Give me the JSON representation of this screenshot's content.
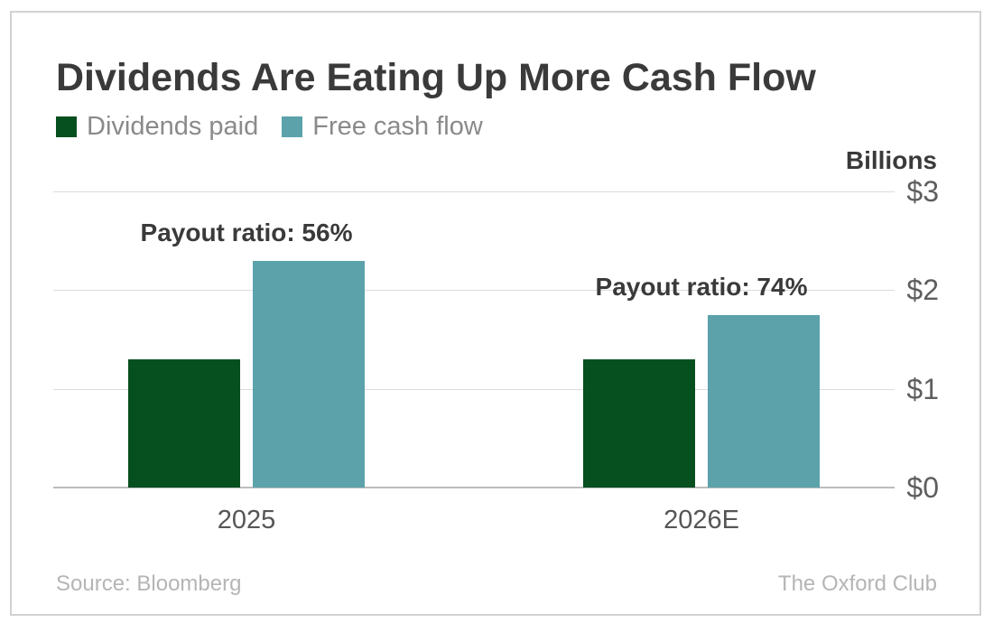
{
  "header": {
    "title": "Dividends Are Eating Up More Cash Flow",
    "legend": [
      {
        "label": "Dividends paid",
        "color": "#064f1f"
      },
      {
        "label": "Free cash flow",
        "color": "#5ba2ab"
      }
    ]
  },
  "chart_data": {
    "type": "bar",
    "title": "Dividends Are Eating Up More Cash Flow",
    "unit_label": "Billions",
    "categories": [
      "2025",
      "2026E"
    ],
    "series": [
      {
        "name": "Dividends paid",
        "color": "#064f1f",
        "values": [
          1.3,
          1.3
        ]
      },
      {
        "name": "Free cash flow",
        "color": "#5ba2ab",
        "values": [
          2.3,
          1.75
        ]
      }
    ],
    "annotations": [
      {
        "category": "2025",
        "text": "Payout ratio: 56%"
      },
      {
        "category": "2026E",
        "text": "Payout ratio: 74%"
      }
    ],
    "yticks": [
      {
        "value": 0,
        "label": "$0"
      },
      {
        "value": 1,
        "label": "$1"
      },
      {
        "value": 2,
        "label": "$2"
      },
      {
        "value": 3,
        "label": "$3"
      }
    ],
    "ylim": [
      0,
      3
    ],
    "grid": true,
    "legend_position": "top-left"
  },
  "footer": {
    "source": "Source: Bloomberg",
    "brand": "The Oxford Club"
  },
  "colors": {
    "dividends_green": "#064f1f",
    "cash_flow_teal": "#5ba2ab",
    "title_text": "#3a3a3a",
    "gridline": "#dcdcdc",
    "baseline": "#bdbdbd",
    "card_border": "#d2d2d2"
  }
}
